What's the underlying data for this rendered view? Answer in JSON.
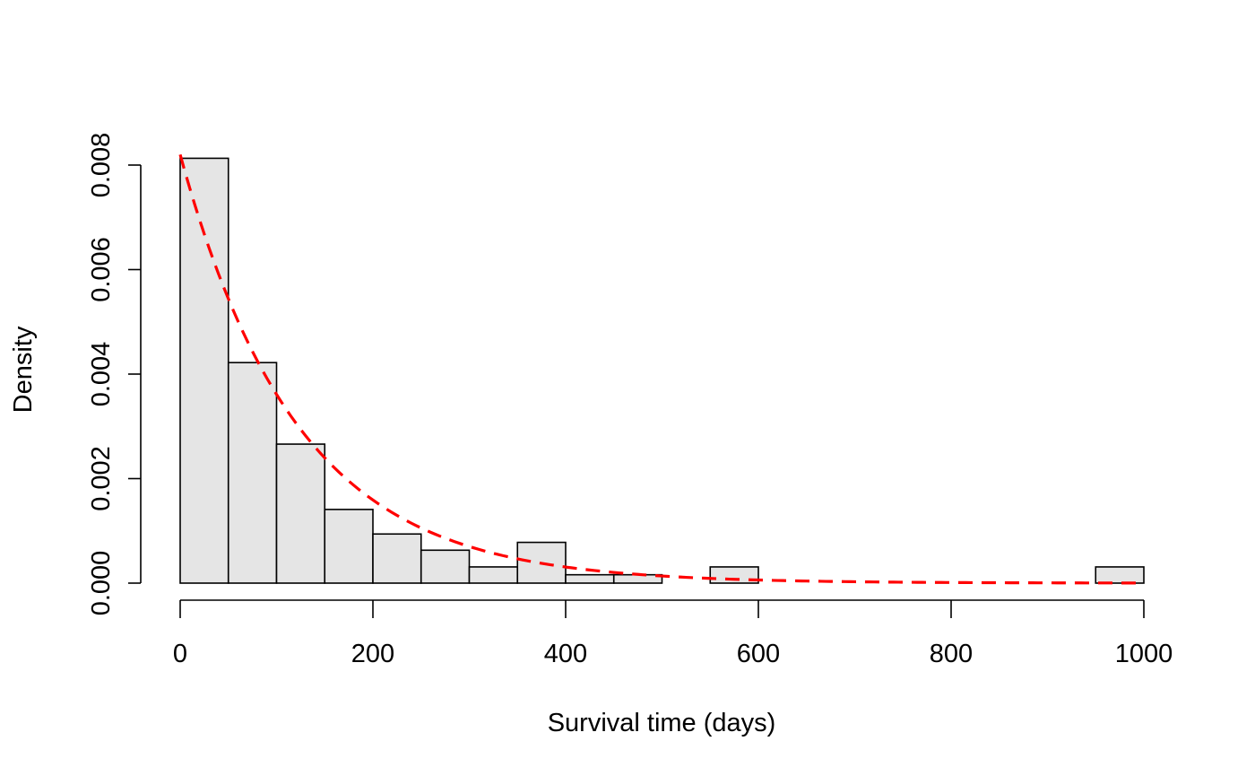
{
  "chart_data": {
    "type": "bar",
    "title": "",
    "xlabel": "Survival time (days)",
    "ylabel": "Density",
    "xlim": [
      0,
      1000
    ],
    "ylim": [
      0,
      0.0082
    ],
    "grid": false,
    "legend": "none",
    "x_ticks": [
      0,
      200,
      400,
      600,
      800,
      1000
    ],
    "x_tick_labels": [
      "0",
      "200",
      "400",
      "600",
      "800",
      "1000"
    ],
    "y_ticks": [
      0,
      0.002,
      0.004,
      0.006,
      0.008
    ],
    "y_tick_labels": [
      "0.000",
      "0.002",
      "0.004",
      "0.006",
      "0.008"
    ],
    "bins": [
      {
        "start": 0,
        "end": 50,
        "density": 0.00813
      },
      {
        "start": 50,
        "end": 100,
        "density": 0.00422
      },
      {
        "start": 100,
        "end": 150,
        "density": 0.00266
      },
      {
        "start": 150,
        "end": 200,
        "density": 0.00141
      },
      {
        "start": 200,
        "end": 250,
        "density": 0.00094
      },
      {
        "start": 250,
        "end": 300,
        "density": 0.00063
      },
      {
        "start": 300,
        "end": 350,
        "density": 0.00031
      },
      {
        "start": 350,
        "end": 400,
        "density": 0.00078
      },
      {
        "start": 400,
        "end": 450,
        "density": 0.00016
      },
      {
        "start": 450,
        "end": 500,
        "density": 0.00016
      },
      {
        "start": 500,
        "end": 550,
        "density": 0.0
      },
      {
        "start": 550,
        "end": 600,
        "density": 0.00031
      },
      {
        "start": 600,
        "end": 650,
        "density": 0.0
      },
      {
        "start": 650,
        "end": 700,
        "density": 0.0
      },
      {
        "start": 700,
        "end": 750,
        "density": 0.0
      },
      {
        "start": 750,
        "end": 800,
        "density": 0.0
      },
      {
        "start": 800,
        "end": 850,
        "density": 0.0
      },
      {
        "start": 850,
        "end": 900,
        "density": 0.0
      },
      {
        "start": 900,
        "end": 950,
        "density": 0.0
      },
      {
        "start": 950,
        "end": 1000,
        "density": 0.00031
      }
    ],
    "bar_fill": "#e5e5e5",
    "bar_stroke": "#000000",
    "curve": {
      "type": "exponential-density",
      "rate": 0.0082,
      "color": "#ff0000",
      "style": "dashed"
    }
  }
}
